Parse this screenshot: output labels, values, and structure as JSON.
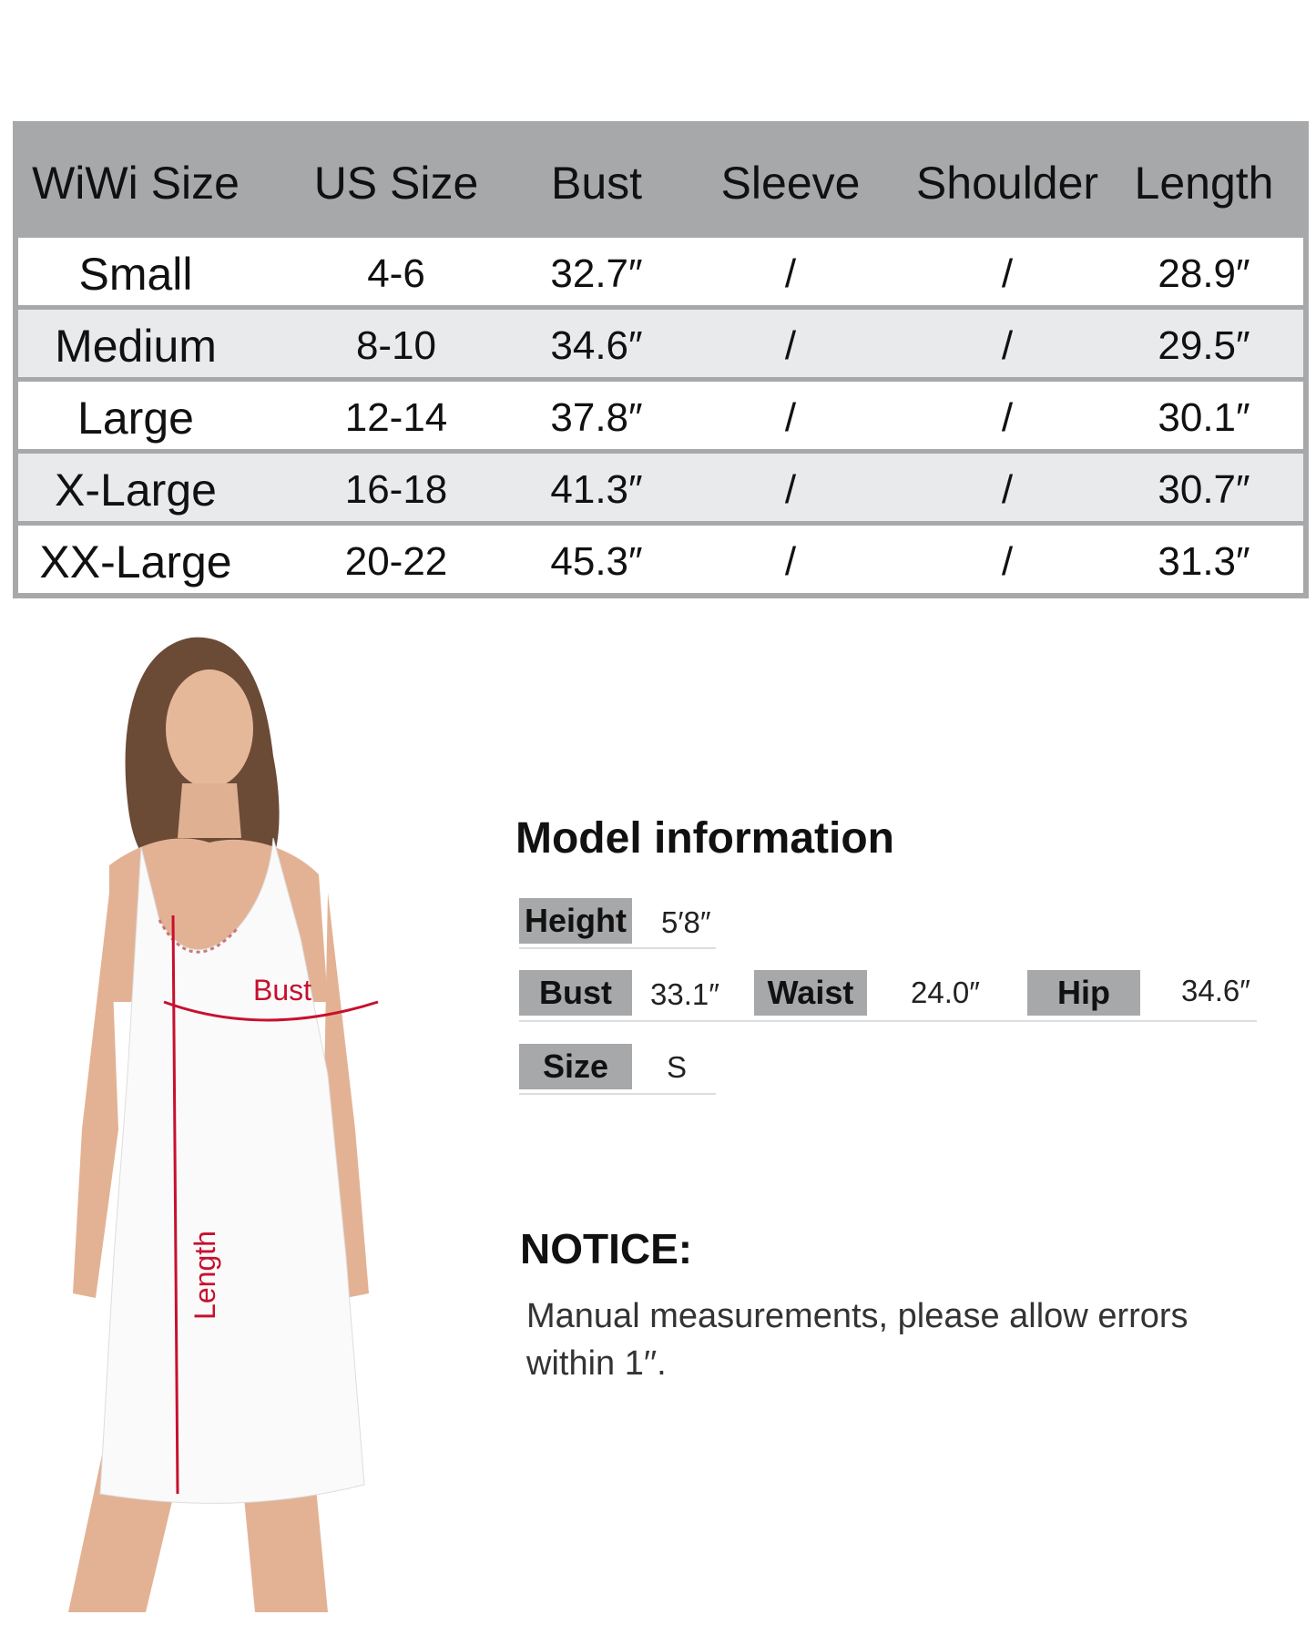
{
  "size_table": {
    "headers": [
      "WiWi Size",
      "US Size",
      "Bust",
      "Sleeve",
      "Shoulder",
      "Length"
    ],
    "rows": [
      [
        "Small",
        "4-6",
        "32.7″",
        "/",
        "/",
        "28.9″"
      ],
      [
        "Medium",
        "8-10",
        "34.6″",
        "/",
        "/",
        "29.5″"
      ],
      [
        "Large",
        "12-14",
        "37.8″",
        "/",
        "/",
        "30.1″"
      ],
      [
        "X-Large",
        "16-18",
        "41.3″",
        "/",
        "/",
        "30.7″"
      ],
      [
        "XX-Large",
        "20-22",
        "45.3″",
        "/",
        "/",
        "31.3″"
      ]
    ],
    "header_color": "#a7a8aa",
    "alt_row_color": "#e9eaec"
  },
  "model_info": {
    "title": "Model information",
    "height_label": "Height",
    "height_value": "5′8″",
    "bust_label": "Bust",
    "bust_value": "33.1″",
    "waist_label": "Waist",
    "waist_value": "24.0″",
    "hip_label": "Hip",
    "hip_value": "34.6″",
    "size_label": "Size",
    "size_value": "S"
  },
  "notice": {
    "title": "NOTICE:",
    "line1": "Manual measurements, please allow errors",
    "line2": "within 1′′."
  },
  "diagram": {
    "bust_label": "Bust",
    "length_label": "Length",
    "annotation_color": "#c8102e"
  }
}
